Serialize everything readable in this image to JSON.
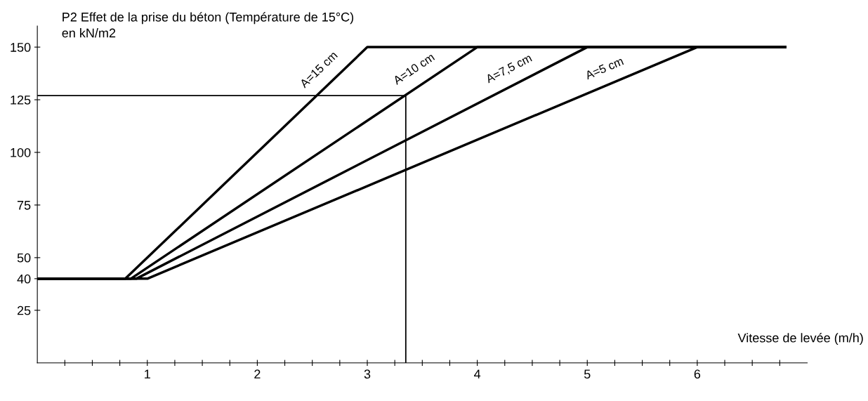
{
  "chart_data": {
    "type": "line",
    "title": "P2 Effet de la prise du béton (Température de 15°C)",
    "ylabel": "en kN/m2",
    "xlabel": "Vitesse de levée (m/h)",
    "series": [
      {
        "name": "A=15 cm",
        "color": "#000000",
        "x": [
          0,
          0.8,
          3.0,
          6.8
        ],
        "values": [
          40,
          40,
          150,
          150
        ]
      },
      {
        "name": "A=10 cm",
        "color": "#000000",
        "x": [
          0,
          0.85,
          4.0,
          6.8
        ],
        "values": [
          40,
          40,
          150,
          150
        ]
      },
      {
        "name": "A=7,5 cm",
        "color": "#000000",
        "x": [
          0,
          0.9,
          5.0,
          6.8
        ],
        "values": [
          40,
          40,
          150,
          150
        ]
      },
      {
        "name": "A=5 cm",
        "color": "#000000",
        "x": [
          0,
          1.0,
          6.0,
          6.8
        ],
        "values": [
          40,
          40,
          150,
          150
        ]
      },
      {
        "color": "#000000",
        "x": [
          3.35,
          3.35,
          0
        ],
        "values": [
          0,
          127,
          127
        ]
      }
    ],
    "xlim": [
      0,
      7
    ],
    "ylim": [
      0,
      160
    ],
    "xticks": [
      {
        "value": 0.25,
        "label": null
      },
      {
        "value": 0.5,
        "label": null
      },
      {
        "value": 0.75,
        "label": null
      },
      1,
      {
        "value": 1.25,
        "label": null
      },
      {
        "value": 1.5,
        "label": null
      },
      {
        "value": 1.75,
        "label": null
      },
      2,
      {
        "value": 2.25,
        "label": null
      },
      {
        "value": 2.5,
        "label": null
      },
      {
        "value": 2.75,
        "label": null
      },
      3,
      {
        "value": 3.25,
        "label": null
      },
      {
        "value": 3.5,
        "label": null
      },
      {
        "value": 3.75,
        "label": null
      },
      4,
      {
        "value": 4.25,
        "label": null
      },
      {
        "value": 4.5,
        "label": null
      },
      {
        "value": 4.75,
        "label": null
      },
      5,
      {
        "value": 5.25,
        "label": null
      },
      {
        "value": 5.5,
        "label": null
      },
      {
        "value": 5.75,
        "label": null
      },
      6,
      {
        "value": 6.25,
        "label": null
      },
      {
        "value": 6.5,
        "label": null
      },
      {
        "value": 6.75,
        "label": null
      }
    ],
    "yticks": [
      25,
      40,
      50,
      75,
      100,
      125,
      150
    ],
    "grid": false,
    "legend": false,
    "marker": "none",
    "line_style": "solid"
  }
}
